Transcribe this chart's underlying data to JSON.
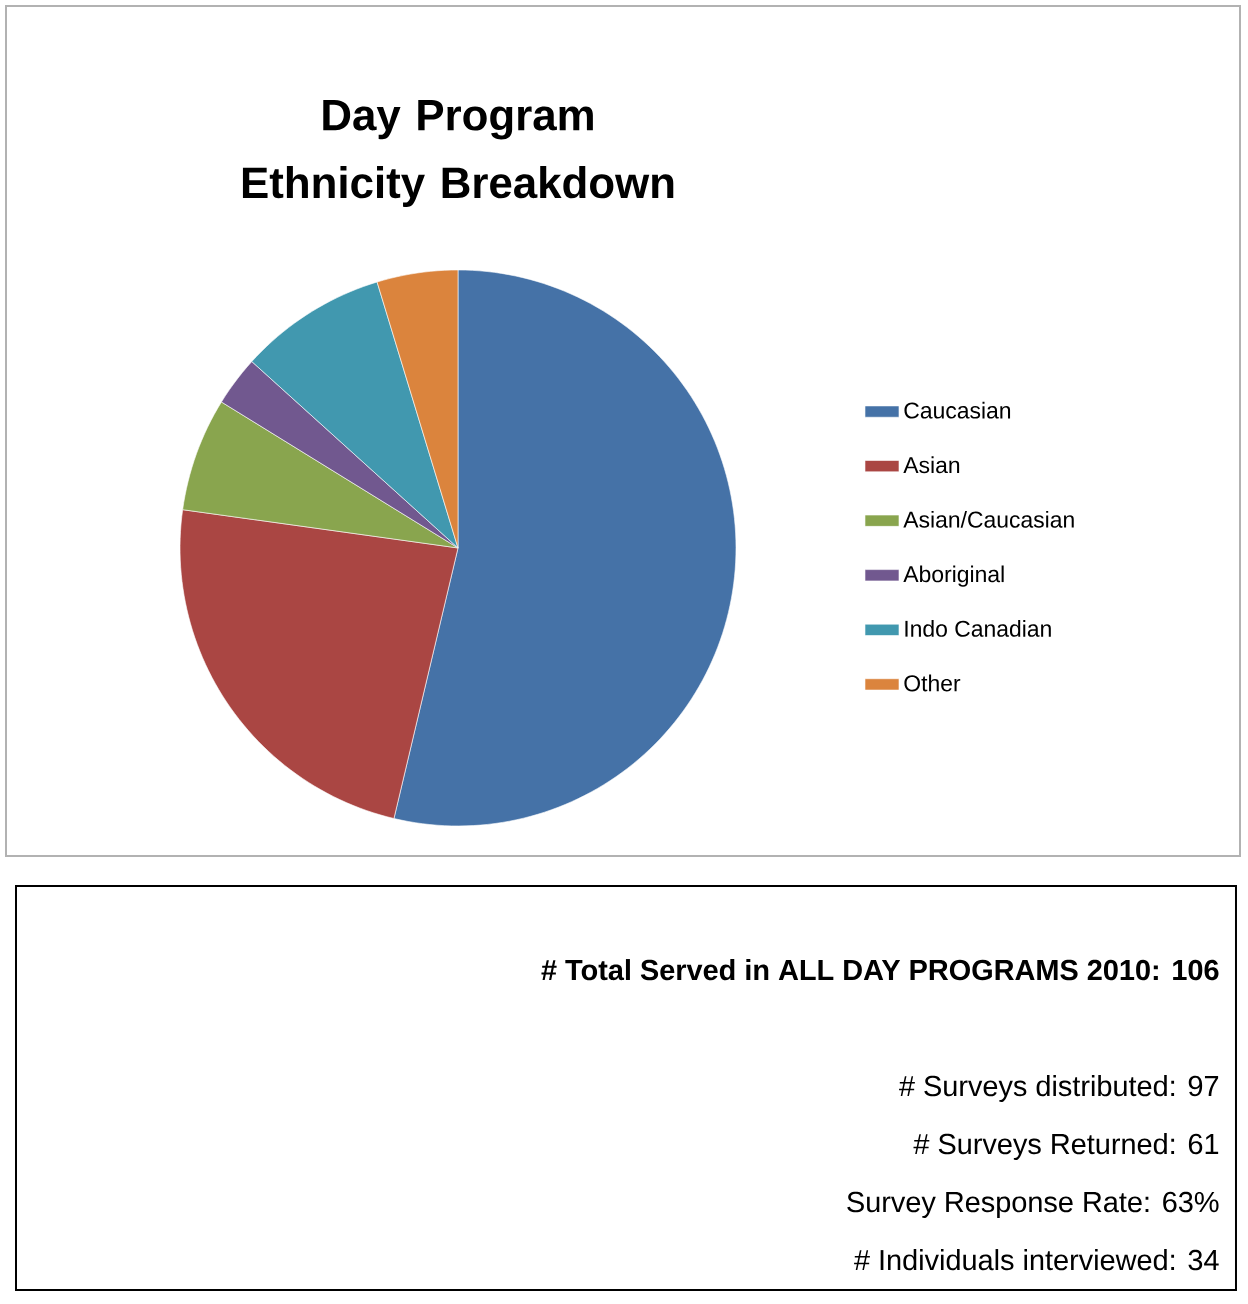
{
  "chart_data": {
    "type": "pie",
    "title": "Day Program Ethnicity Breakdown",
    "categories": [
      "Caucasian",
      "Asian",
      "Asian/Caucasian",
      "Aboriginal",
      "Indo Canadian",
      "Other"
    ],
    "values": [
      53.7,
      23.5,
      6.6,
      2.9,
      8.6,
      4.7
    ],
    "colors": [
      "#4572a7",
      "#aa4643",
      "#89a54e",
      "#71588f",
      "#4198af",
      "#db843d"
    ],
    "legend": "right",
    "annotations": [
      "# Total Served in ALL DAY PROGRAMS 2010:  106",
      "# Surveys distributed: 97",
      "# Surveys Returned:  61",
      "Survey Response Rate: 63%",
      "# Individuals interviewed:  34"
    ]
  }
}
